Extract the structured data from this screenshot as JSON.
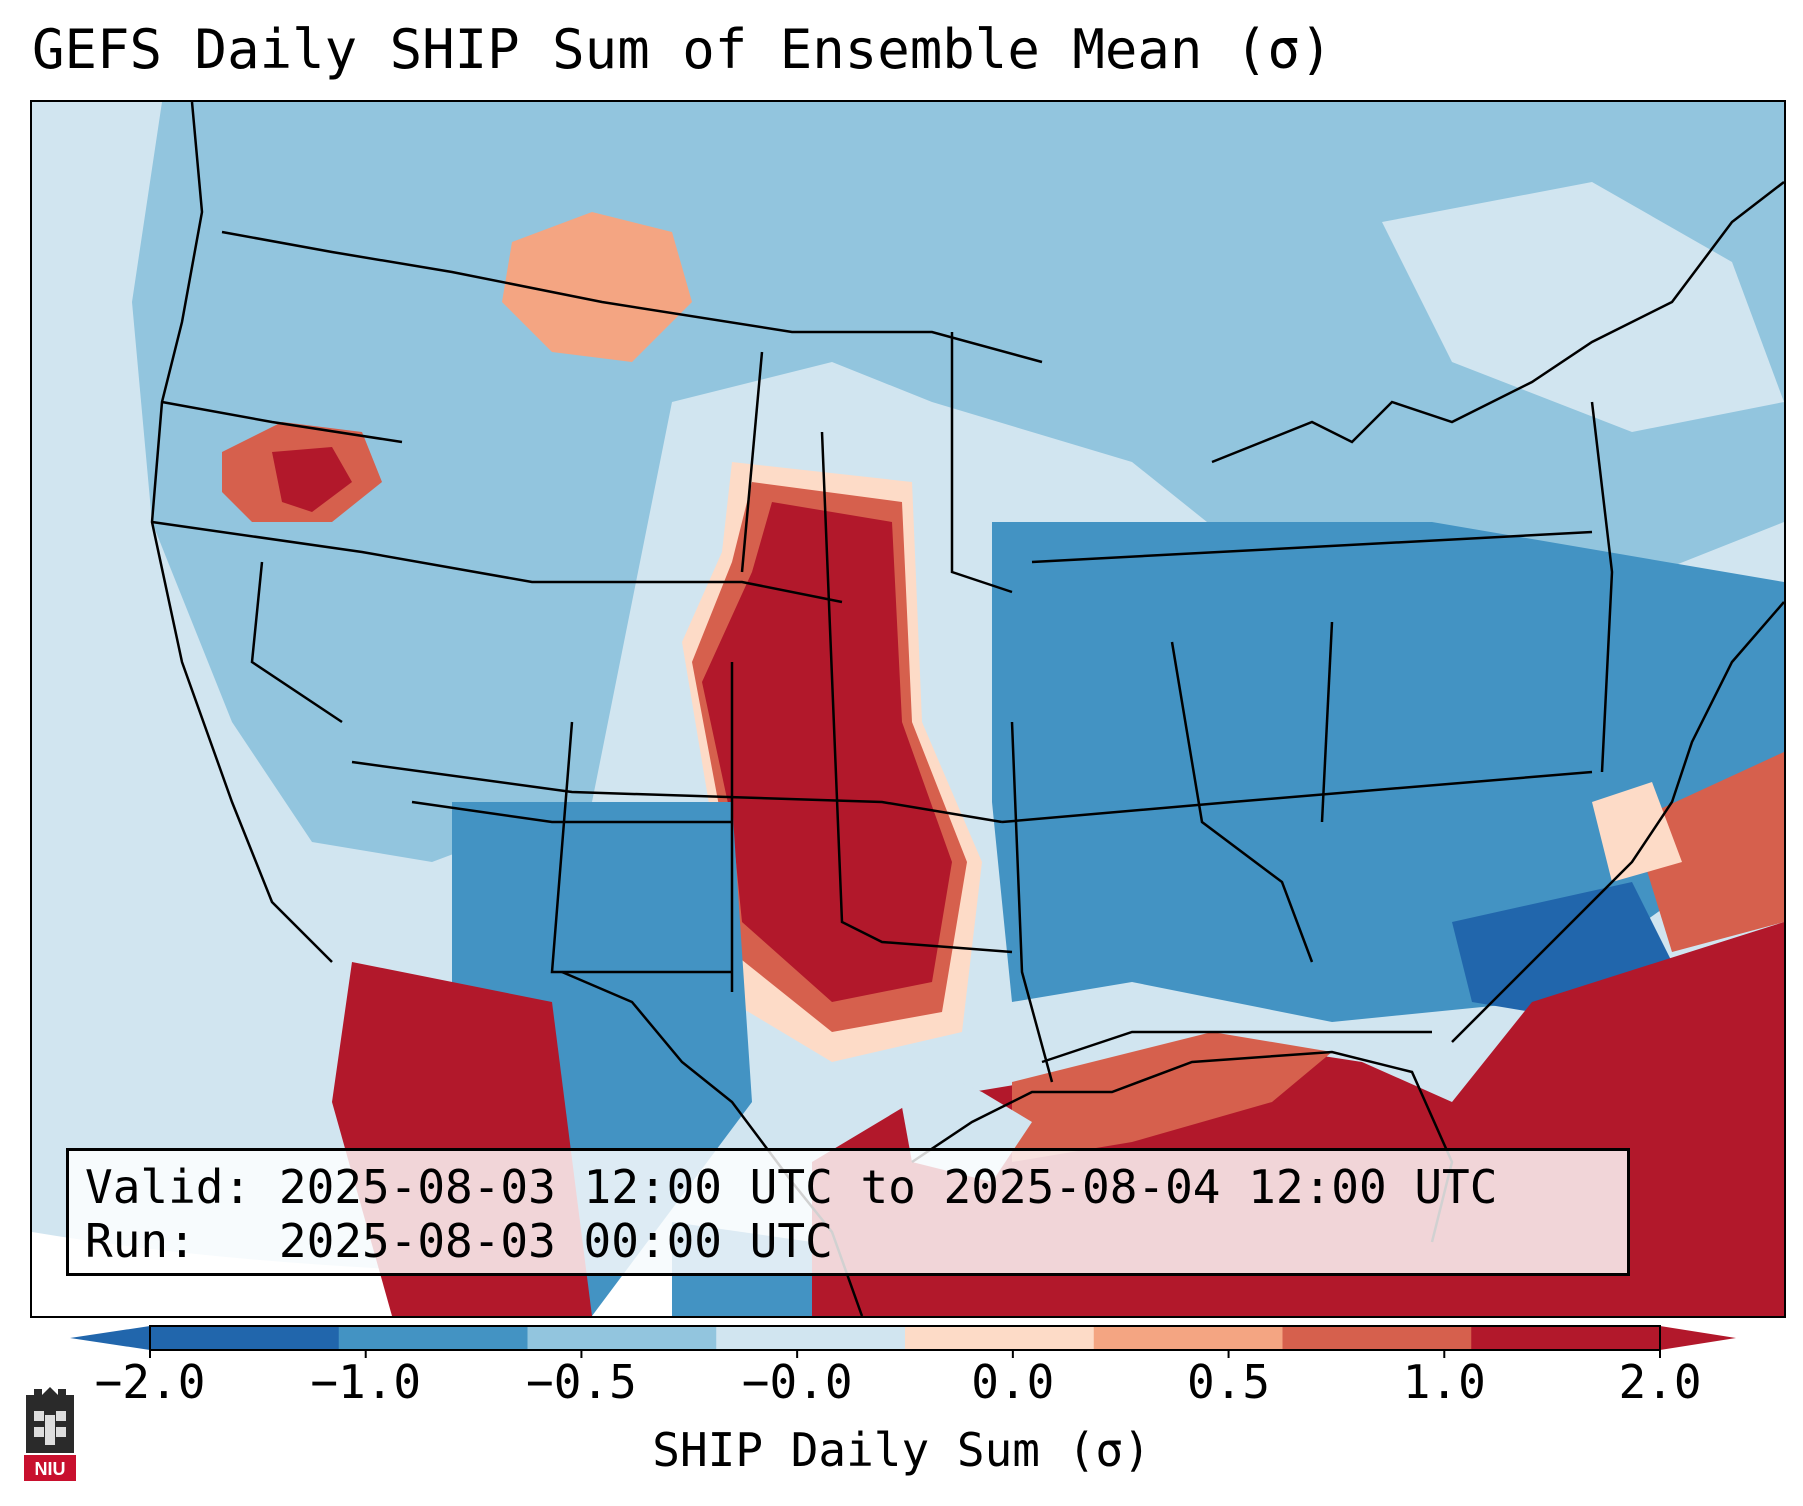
{
  "title": "GEFS Daily SHIP Sum of Ensemble Mean (σ)",
  "info": {
    "valid_label": "Valid:",
    "valid_value": "2025-08-03 12:00 UTC to 2025-08-04 12:00 UTC",
    "run_label": "Run:",
    "run_value": "2025-08-03 00:00 UTC"
  },
  "colorbar": {
    "label": "SHIP Daily Sum (σ)",
    "ticks": [
      "−2.0",
      "−1.0",
      "−0.5",
      "−0.0",
      "0.0",
      "0.5",
      "1.0",
      "2.0"
    ],
    "colors": [
      "#2166ac",
      "#4393c3",
      "#92c5de",
      "#d1e5f0",
      "#fddbc7",
      "#f4a582",
      "#d6604d",
      "#b2182b"
    ]
  },
  "logo_text": "NIU"
}
